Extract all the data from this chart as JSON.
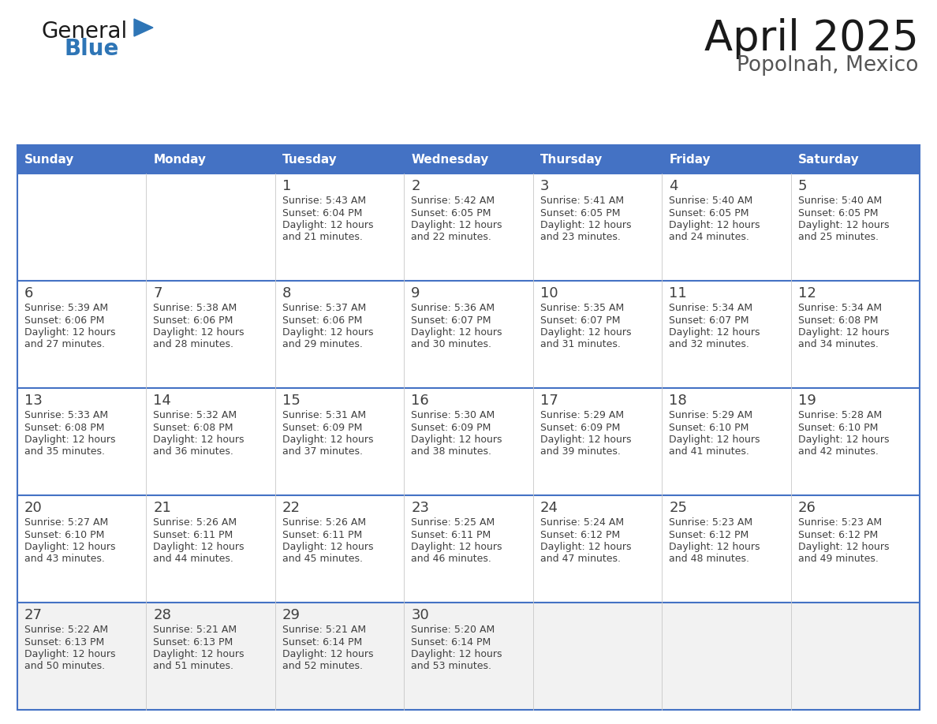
{
  "title": "April 2025",
  "subtitle": "Popolnah, Mexico",
  "header_bg_color": "#4472C4",
  "header_text_color": "#FFFFFF",
  "cell_bg_color": "#FFFFFF",
  "last_row_bg_color": "#F2F2F2",
  "border_color": "#4472C4",
  "divider_color": "#4472C4",
  "text_color": "#404040",
  "days_of_week": [
    "Sunday",
    "Monday",
    "Tuesday",
    "Wednesday",
    "Thursday",
    "Friday",
    "Saturday"
  ],
  "weeks": [
    [
      {
        "day": "",
        "sunrise": "",
        "sunset": "",
        "daylight": ""
      },
      {
        "day": "",
        "sunrise": "",
        "sunset": "",
        "daylight": ""
      },
      {
        "day": "1",
        "sunrise": "Sunrise: 5:43 AM",
        "sunset": "Sunset: 6:04 PM",
        "daylight": "Daylight: 12 hours\nand 21 minutes."
      },
      {
        "day": "2",
        "sunrise": "Sunrise: 5:42 AM",
        "sunset": "Sunset: 6:05 PM",
        "daylight": "Daylight: 12 hours\nand 22 minutes."
      },
      {
        "day": "3",
        "sunrise": "Sunrise: 5:41 AM",
        "sunset": "Sunset: 6:05 PM",
        "daylight": "Daylight: 12 hours\nand 23 minutes."
      },
      {
        "day": "4",
        "sunrise": "Sunrise: 5:40 AM",
        "sunset": "Sunset: 6:05 PM",
        "daylight": "Daylight: 12 hours\nand 24 minutes."
      },
      {
        "day": "5",
        "sunrise": "Sunrise: 5:40 AM",
        "sunset": "Sunset: 6:05 PM",
        "daylight": "Daylight: 12 hours\nand 25 minutes."
      }
    ],
    [
      {
        "day": "6",
        "sunrise": "Sunrise: 5:39 AM",
        "sunset": "Sunset: 6:06 PM",
        "daylight": "Daylight: 12 hours\nand 27 minutes."
      },
      {
        "day": "7",
        "sunrise": "Sunrise: 5:38 AM",
        "sunset": "Sunset: 6:06 PM",
        "daylight": "Daylight: 12 hours\nand 28 minutes."
      },
      {
        "day": "8",
        "sunrise": "Sunrise: 5:37 AM",
        "sunset": "Sunset: 6:06 PM",
        "daylight": "Daylight: 12 hours\nand 29 minutes."
      },
      {
        "day": "9",
        "sunrise": "Sunrise: 5:36 AM",
        "sunset": "Sunset: 6:07 PM",
        "daylight": "Daylight: 12 hours\nand 30 minutes."
      },
      {
        "day": "10",
        "sunrise": "Sunrise: 5:35 AM",
        "sunset": "Sunset: 6:07 PM",
        "daylight": "Daylight: 12 hours\nand 31 minutes."
      },
      {
        "day": "11",
        "sunrise": "Sunrise: 5:34 AM",
        "sunset": "Sunset: 6:07 PM",
        "daylight": "Daylight: 12 hours\nand 32 minutes."
      },
      {
        "day": "12",
        "sunrise": "Sunrise: 5:34 AM",
        "sunset": "Sunset: 6:08 PM",
        "daylight": "Daylight: 12 hours\nand 34 minutes."
      }
    ],
    [
      {
        "day": "13",
        "sunrise": "Sunrise: 5:33 AM",
        "sunset": "Sunset: 6:08 PM",
        "daylight": "Daylight: 12 hours\nand 35 minutes."
      },
      {
        "day": "14",
        "sunrise": "Sunrise: 5:32 AM",
        "sunset": "Sunset: 6:08 PM",
        "daylight": "Daylight: 12 hours\nand 36 minutes."
      },
      {
        "day": "15",
        "sunrise": "Sunrise: 5:31 AM",
        "sunset": "Sunset: 6:09 PM",
        "daylight": "Daylight: 12 hours\nand 37 minutes."
      },
      {
        "day": "16",
        "sunrise": "Sunrise: 5:30 AM",
        "sunset": "Sunset: 6:09 PM",
        "daylight": "Daylight: 12 hours\nand 38 minutes."
      },
      {
        "day": "17",
        "sunrise": "Sunrise: 5:29 AM",
        "sunset": "Sunset: 6:09 PM",
        "daylight": "Daylight: 12 hours\nand 39 minutes."
      },
      {
        "day": "18",
        "sunrise": "Sunrise: 5:29 AM",
        "sunset": "Sunset: 6:10 PM",
        "daylight": "Daylight: 12 hours\nand 41 minutes."
      },
      {
        "day": "19",
        "sunrise": "Sunrise: 5:28 AM",
        "sunset": "Sunset: 6:10 PM",
        "daylight": "Daylight: 12 hours\nand 42 minutes."
      }
    ],
    [
      {
        "day": "20",
        "sunrise": "Sunrise: 5:27 AM",
        "sunset": "Sunset: 6:10 PM",
        "daylight": "Daylight: 12 hours\nand 43 minutes."
      },
      {
        "day": "21",
        "sunrise": "Sunrise: 5:26 AM",
        "sunset": "Sunset: 6:11 PM",
        "daylight": "Daylight: 12 hours\nand 44 minutes."
      },
      {
        "day": "22",
        "sunrise": "Sunrise: 5:26 AM",
        "sunset": "Sunset: 6:11 PM",
        "daylight": "Daylight: 12 hours\nand 45 minutes."
      },
      {
        "day": "23",
        "sunrise": "Sunrise: 5:25 AM",
        "sunset": "Sunset: 6:11 PM",
        "daylight": "Daylight: 12 hours\nand 46 minutes."
      },
      {
        "day": "24",
        "sunrise": "Sunrise: 5:24 AM",
        "sunset": "Sunset: 6:12 PM",
        "daylight": "Daylight: 12 hours\nand 47 minutes."
      },
      {
        "day": "25",
        "sunrise": "Sunrise: 5:23 AM",
        "sunset": "Sunset: 6:12 PM",
        "daylight": "Daylight: 12 hours\nand 48 minutes."
      },
      {
        "day": "26",
        "sunrise": "Sunrise: 5:23 AM",
        "sunset": "Sunset: 6:12 PM",
        "daylight": "Daylight: 12 hours\nand 49 minutes."
      }
    ],
    [
      {
        "day": "27",
        "sunrise": "Sunrise: 5:22 AM",
        "sunset": "Sunset: 6:13 PM",
        "daylight": "Daylight: 12 hours\nand 50 minutes."
      },
      {
        "day": "28",
        "sunrise": "Sunrise: 5:21 AM",
        "sunset": "Sunset: 6:13 PM",
        "daylight": "Daylight: 12 hours\nand 51 minutes."
      },
      {
        "day": "29",
        "sunrise": "Sunrise: 5:21 AM",
        "sunset": "Sunset: 6:14 PM",
        "daylight": "Daylight: 12 hours\nand 52 minutes."
      },
      {
        "day": "30",
        "sunrise": "Sunrise: 5:20 AM",
        "sunset": "Sunset: 6:14 PM",
        "daylight": "Daylight: 12 hours\nand 53 minutes."
      },
      {
        "day": "",
        "sunrise": "",
        "sunset": "",
        "daylight": ""
      },
      {
        "day": "",
        "sunrise": "",
        "sunset": "",
        "daylight": ""
      },
      {
        "day": "",
        "sunrise": "",
        "sunset": "",
        "daylight": ""
      }
    ]
  ],
  "logo_triangle_color": "#2E75B6",
  "logo_general_color": "#1a1a1a",
  "logo_blue_color": "#2E75B6",
  "title_color": "#1a1a1a",
  "subtitle_color": "#555555"
}
